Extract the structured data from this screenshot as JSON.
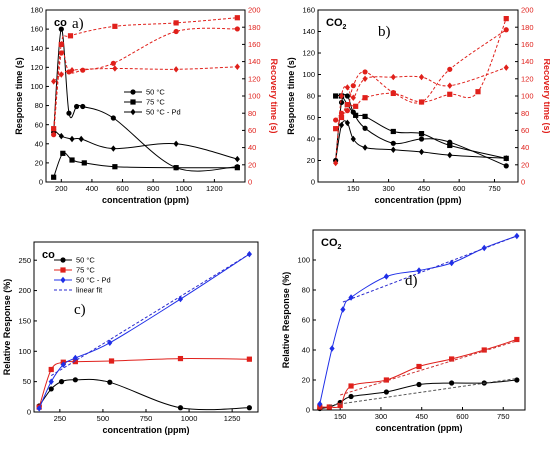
{
  "chart_data": [
    {
      "panel": "a",
      "type": "line",
      "title": "",
      "corner_label": "co",
      "panel_letter": "a)",
      "xlabel": "concentration (ppm)",
      "ylabel": "Response time (s)",
      "y2label": "Recovery time (s)",
      "xlim": [
        100,
        1400
      ],
      "ylim": [
        0,
        180
      ],
      "y2lim": [
        0,
        200
      ],
      "xticks": [
        200,
        400,
        600,
        800,
        1000,
        1200
      ],
      "xtick_labels": [
        "200",
        "400",
        "600",
        "800",
        "1000",
        "1200"
      ],
      "yticks": [
        0,
        20,
        40,
        60,
        80,
        100,
        120,
        140,
        160,
        180
      ],
      "ytick_labels": [
        "0",
        "20",
        "40",
        "60",
        "80",
        "100",
        "120",
        "140",
        "160",
        "180"
      ],
      "y2ticks": [
        0,
        20,
        40,
        60,
        80,
        100,
        120,
        140,
        160,
        180,
        200
      ],
      "y2tick_labels": [
        "0",
        "20",
        "40",
        "60",
        "80",
        "100",
        "120",
        "140",
        "160",
        "180",
        "200"
      ],
      "legend": "top-center",
      "legend_entries": [
        {
          "name": "50 °C",
          "color": "#000000",
          "marker": "circle",
          "dash": "none"
        },
        {
          "name": "75 °C",
          "color": "#000000",
          "marker": "square",
          "dash": "none"
        },
        {
          "name": "50 °C - Pd",
          "color": "#000000",
          "marker": "diamond",
          "dash": "none"
        }
      ],
      "series": [
        {
          "name": "50 °C",
          "axis": "left",
          "color": "#000000",
          "marker": "circle",
          "dash": "none",
          "x": [
            150,
            200,
            250,
            300,
            340,
            540,
            950,
            1350
          ],
          "y": [
            52,
            160,
            72,
            79,
            79,
            67,
            15,
            16
          ]
        },
        {
          "name": "75 °C",
          "axis": "left",
          "color": "#000000",
          "marker": "square",
          "dash": "none",
          "x": [
            150,
            210,
            270,
            350,
            550,
            950,
            1350
          ],
          "y": [
            5,
            30,
            23,
            20,
            16,
            15,
            15
          ]
        },
        {
          "name": "50 °C - Pd",
          "axis": "left",
          "color": "#000000",
          "marker": "diamond",
          "dash": "none",
          "x": [
            150,
            200,
            270,
            330,
            540,
            950,
            1350
          ],
          "y": [
            55,
            48,
            45,
            45,
            35,
            40,
            24
          ]
        },
        {
          "name": "50 °C",
          "axis": "right",
          "color": "#e0201b",
          "marker": "circle",
          "dash": "dash",
          "x": [
            150,
            200,
            250,
            340,
            540,
            950,
            1350
          ],
          "y": [
            55,
            150,
            128,
            130,
            138,
            175,
            178
          ]
        },
        {
          "name": "75 °C",
          "axis": "right",
          "color": "#e0201b",
          "marker": "square",
          "dash": "dash",
          "x": [
            150,
            200,
            260,
            550,
            950,
            1350
          ],
          "y": [
            62,
            160,
            170,
            181,
            185,
            191
          ]
        },
        {
          "name": "50 °C - Pd",
          "axis": "right",
          "color": "#e0201b",
          "marker": "diamond",
          "dash": "dash",
          "x": [
            150,
            200,
            270,
            550,
            950,
            1350
          ],
          "y": [
            117,
            125,
            130,
            132,
            131,
            134
          ]
        }
      ]
    },
    {
      "panel": "b",
      "type": "line",
      "title": "",
      "corner_label": "CO",
      "corner_sub": "2",
      "panel_letter": "b)",
      "xlabel": "concentration (ppm)",
      "ylabel": "Response time (s)",
      "y2label": "Recovery time (s)",
      "xlim": [
        0,
        850
      ],
      "ylim": [
        0,
        160
      ],
      "y2lim": [
        0,
        200
      ],
      "xticks": [
        150,
        300,
        450,
        600,
        750
      ],
      "xtick_labels": [
        "150",
        "300",
        "450",
        "600",
        "750"
      ],
      "yticks": [
        0,
        20,
        40,
        60,
        80,
        100,
        120,
        140,
        160
      ],
      "ytick_labels": [
        "0",
        "20",
        "40",
        "60",
        "80",
        "100",
        "120",
        "140",
        "160"
      ],
      "y2ticks": [
        0,
        20,
        40,
        60,
        80,
        100,
        120,
        140,
        160,
        180,
        200
      ],
      "y2tick_labels": [
        "0",
        "20",
        "40",
        "60",
        "80",
        "100",
        "120",
        "140",
        "160",
        "180",
        "200"
      ],
      "series": [
        {
          "name": "50 °C",
          "axis": "left",
          "color": "#000000",
          "marker": "circle",
          "dash": "none",
          "x": [
            75,
            100,
            125,
            150,
            200,
            320,
            440,
            560,
            800
          ],
          "y": [
            20,
            74,
            80,
            65,
            50,
            36,
            40,
            37,
            15
          ]
        },
        {
          "name": "75 °C",
          "axis": "left",
          "color": "#000000",
          "marker": "square",
          "dash": "none",
          "x": [
            75,
            100,
            125,
            160,
            200,
            320,
            440,
            560,
            800
          ],
          "y": [
            80,
            80,
            72,
            62,
            61,
            47,
            45,
            34,
            22
          ]
        },
        {
          "name": "50 °C - Pd",
          "axis": "left",
          "color": "#000000",
          "marker": "diamond",
          "dash": "none",
          "x": [
            75,
            100,
            125,
            150,
            200,
            320,
            440,
            560,
            800
          ],
          "y": [
            20,
            53,
            55,
            40,
            32,
            30,
            28,
            25,
            22
          ]
        },
        {
          "name": "50 °C",
          "axis": "right",
          "color": "#e0201b",
          "marker": "circle",
          "dash": "dash",
          "x": [
            75,
            100,
            125,
            150,
            200,
            320,
            440,
            560,
            800
          ],
          "y": [
            72,
            80,
            83,
            112,
            128,
            104,
            93,
            131,
            177
          ]
        },
        {
          "name": "75 °C",
          "axis": "right",
          "color": "#e0201b",
          "marker": "square",
          "dash": "dash",
          "x": [
            75,
            100,
            125,
            160,
            200,
            320,
            440,
            560,
            680,
            800
          ],
          "y": [
            62,
            75,
            90,
            88,
            98,
            103,
            93,
            102,
            105,
            190
          ]
        },
        {
          "name": "50 °C - Pd",
          "axis": "right",
          "color": "#e0201b",
          "marker": "diamond",
          "dash": "dash",
          "x": [
            75,
            100,
            125,
            150,
            200,
            320,
            440,
            560,
            800
          ],
          "y": [
            22,
            100,
            110,
            98,
            120,
            122,
            122,
            112,
            133
          ]
        }
      ]
    },
    {
      "panel": "c",
      "type": "line",
      "title": "",
      "corner_label": "co",
      "panel_letter": "c)",
      "xlabel": "concentration (ppm)",
      "ylabel": "Relative Response (%)",
      "xlim": [
        100,
        1400
      ],
      "ylim": [
        0,
        280
      ],
      "xticks": [
        250,
        500,
        750,
        1000,
        1250
      ],
      "xtick_labels": [
        "250",
        "500",
        "750",
        "1000",
        "1250"
      ],
      "yticks": [
        0,
        50,
        100,
        150,
        200,
        250
      ],
      "ytick_labels": [
        "0",
        "50",
        "100",
        "150",
        "200",
        "250"
      ],
      "legend": "top-left",
      "legend_entries": [
        {
          "name": "50 °C",
          "color": "#000000",
          "marker": "circle",
          "dash": "none"
        },
        {
          "name": "75 °C",
          "color": "#e0201b",
          "marker": "square",
          "dash": "none"
        },
        {
          "name": "50 °C - Pd",
          "color": "#1f2fe8",
          "marker": "diamond",
          "dash": "none"
        },
        {
          "name": "linear fit",
          "color": "#2a2acf",
          "marker": "none",
          "dash": "dash"
        }
      ],
      "series": [
        {
          "name": "50 °C",
          "color": "#000000",
          "marker": "circle",
          "dash": "none",
          "x": [
            130,
            200,
            260,
            340,
            540,
            950,
            1350
          ],
          "y": [
            10,
            38,
            50,
            53,
            49,
            7,
            7
          ]
        },
        {
          "name": "75 °C",
          "color": "#e0201b",
          "marker": "square",
          "dash": "none",
          "x": [
            130,
            200,
            270,
            340,
            550,
            950,
            1350
          ],
          "y": [
            8,
            70,
            82,
            83,
            84,
            88,
            87
          ]
        },
        {
          "name": "50 °C - Pd",
          "color": "#1f2fe8",
          "marker": "diamond",
          "dash": "none",
          "x": [
            130,
            200,
            270,
            340,
            540,
            950,
            1350
          ],
          "y": [
            6,
            50,
            78,
            89,
            114,
            186,
            260
          ]
        },
        {
          "name": "linear fit",
          "color": "#2a2acf",
          "marker": "none",
          "dash": "dash",
          "x": [
            200,
            1350
          ],
          "y": [
            60,
            260
          ]
        }
      ]
    },
    {
      "panel": "d",
      "type": "line",
      "title": "",
      "corner_label": "CO",
      "corner_sub": "2",
      "panel_letter": "d)",
      "xlabel": "concentration (ppm)",
      "ylabel": "Relative Response (%)",
      "xlim": [
        50,
        830
      ],
      "ylim": [
        0,
        120
      ],
      "xticks": [
        150,
        300,
        450,
        600,
        750
      ],
      "xtick_labels": [
        "150",
        "300",
        "450",
        "600",
        "750"
      ],
      "yticks": [
        0,
        20,
        40,
        60,
        80,
        100
      ],
      "ytick_labels": [
        "0",
        "20",
        "40",
        "60",
        "80",
        "100"
      ],
      "series": [
        {
          "name": "50 °C",
          "color": "#000000",
          "marker": "circle",
          "dash": "none",
          "x": [
            75,
            110,
            150,
            190,
            320,
            440,
            560,
            680,
            800
          ],
          "y": [
            1,
            2,
            5,
            9,
            12,
            17,
            18,
            18,
            20
          ]
        },
        {
          "name": "75 °C",
          "color": "#e0201b",
          "marker": "square",
          "dash": "none",
          "x": [
            75,
            110,
            150,
            190,
            320,
            440,
            560,
            680,
            800
          ],
          "y": [
            2,
            2,
            3,
            16,
            20,
            29,
            34,
            40,
            47
          ]
        },
        {
          "name": "50 °C - Pd",
          "color": "#1f2fe8",
          "marker": "diamond",
          "dash": "none",
          "x": [
            75,
            120,
            160,
            190,
            320,
            440,
            560,
            680,
            800
          ],
          "y": [
            4,
            41,
            67,
            75,
            89,
            93,
            98,
            108,
            116
          ]
        },
        {
          "name": "linear fit",
          "color": "#555555",
          "marker": "none",
          "dash": "dash",
          "x": [
            110,
            800
          ],
          "y": [
            3,
            21
          ]
        },
        {
          "name": "linear fit",
          "color": "#cc3333",
          "marker": "none",
          "dash": "dash",
          "x": [
            150,
            800
          ],
          "y": [
            10,
            46
          ]
        },
        {
          "name": "linear fit",
          "color": "#2a2acf",
          "marker": "none",
          "dash": "dash",
          "x": [
            160,
            800
          ],
          "y": [
            72,
            116
          ]
        }
      ]
    }
  ]
}
